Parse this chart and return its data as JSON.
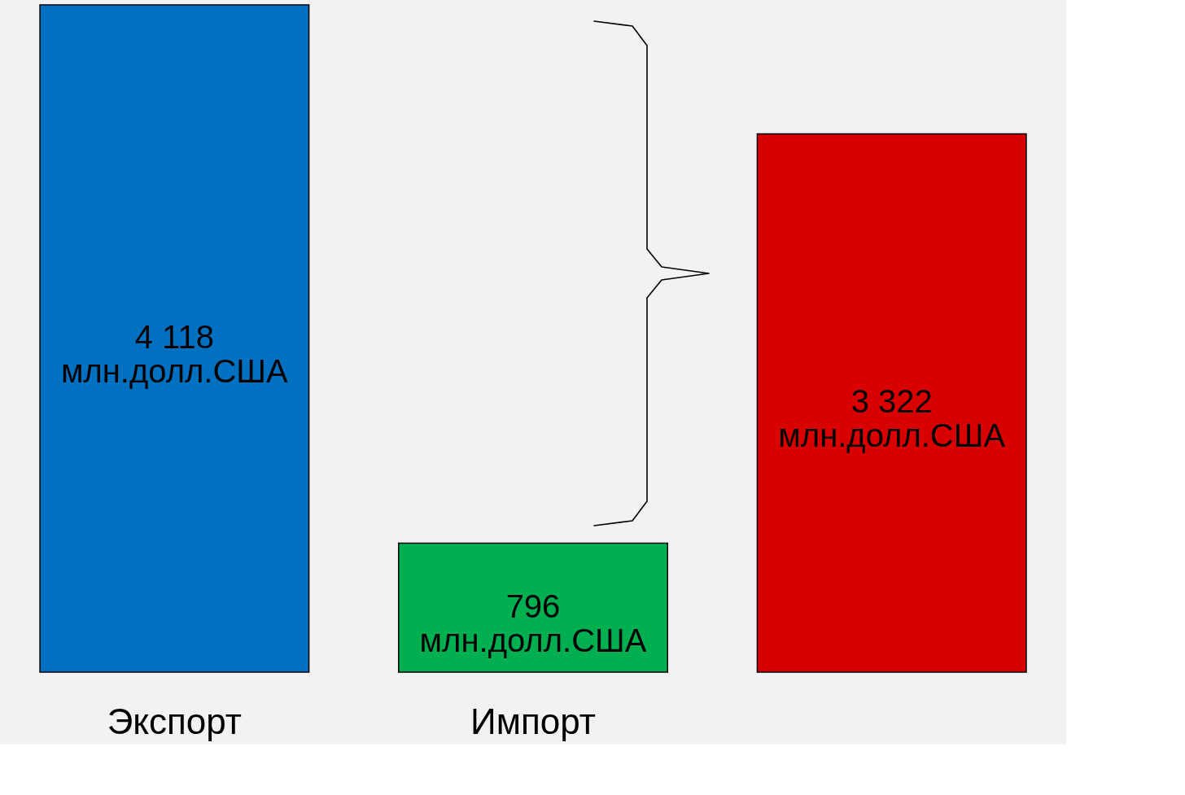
{
  "chart_data": {
    "type": "bar",
    "categories": [
      "Экспорт",
      "Импорт",
      null
    ],
    "values": [
      4118,
      796,
      3322
    ],
    "colors": [
      "#0070c0",
      "#00b050",
      "#d90000"
    ],
    "value_labels": [
      "4 118\nмлн.долл.США",
      "796\nмлн.долл.США",
      "3 322\nмлн.долл.США"
    ]
  }
}
